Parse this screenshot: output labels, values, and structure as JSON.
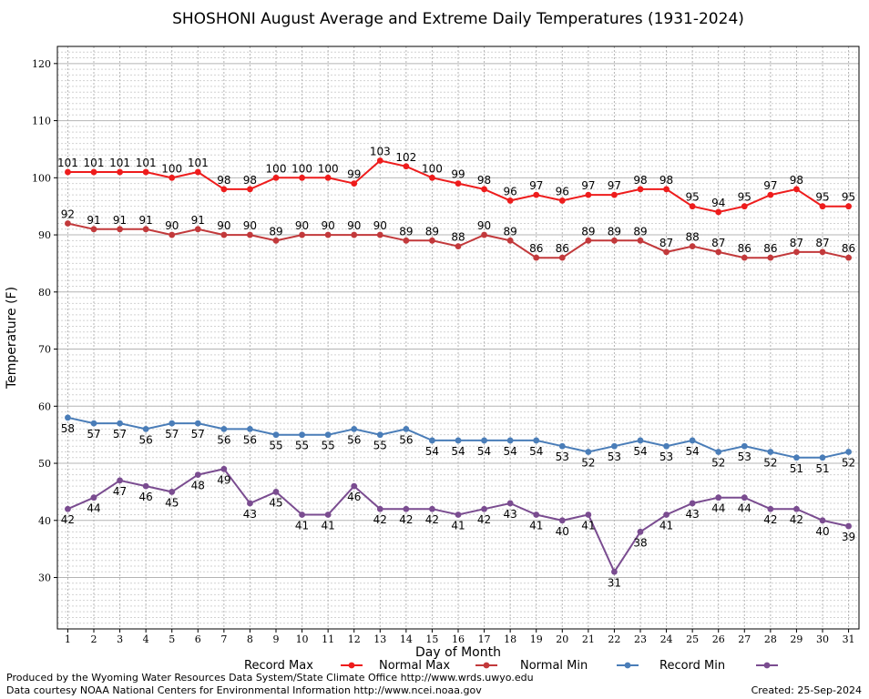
{
  "chart_data": {
    "type": "line",
    "title": "SHOSHONI August Average and Extreme Daily Temperatures (1931-2024)",
    "xlabel": "Day of Month",
    "ylabel": "Temperature (F)",
    "xlim": [
      0.6,
      31.4
    ],
    "ylim": [
      21,
      123
    ],
    "y_ticks": [
      30,
      40,
      50,
      60,
      70,
      80,
      90,
      100,
      110,
      120
    ],
    "x": [
      1,
      2,
      3,
      4,
      5,
      6,
      7,
      8,
      9,
      10,
      11,
      12,
      13,
      14,
      15,
      16,
      17,
      18,
      19,
      20,
      21,
      22,
      23,
      24,
      25,
      26,
      27,
      28,
      29,
      30,
      31
    ],
    "grid": true,
    "legend_position": "bottom",
    "series": [
      {
        "name": "Record Max",
        "color": "#ee1c1c",
        "label_pos": "above",
        "values": [
          101,
          101,
          101,
          101,
          100,
          101,
          98,
          98,
          100,
          100,
          100,
          99,
          103,
          102,
          100,
          99,
          98,
          96,
          97,
          96,
          97,
          97,
          98,
          98,
          95,
          94,
          95,
          97,
          98,
          95,
          95
        ]
      },
      {
        "name": "Normal Max",
        "color": "#c2393b",
        "label_pos": "above",
        "values": [
          92,
          91,
          91,
          91,
          90,
          91,
          90,
          90,
          89,
          90,
          90,
          90,
          90,
          89,
          89,
          88,
          90,
          89,
          86,
          86,
          89,
          89,
          89,
          87,
          88,
          87,
          86,
          86,
          87,
          87,
          86
        ]
      },
      {
        "name": "Normal Min",
        "color": "#4a7db8",
        "label_pos": "below",
        "values": [
          58,
          57,
          57,
          56,
          57,
          57,
          56,
          56,
          55,
          55,
          55,
          56,
          55,
          56,
          54,
          54,
          54,
          54,
          54,
          53,
          52,
          53,
          54,
          53,
          54,
          52,
          53,
          52,
          51,
          51,
          52
        ]
      },
      {
        "name": "Record Min",
        "color": "#7a4c90",
        "label_pos": "below",
        "values": [
          42,
          44,
          47,
          46,
          45,
          48,
          49,
          43,
          45,
          41,
          41,
          46,
          42,
          42,
          42,
          41,
          42,
          43,
          41,
          40,
          41,
          31,
          38,
          41,
          43,
          44,
          44,
          42,
          42,
          40,
          39
        ]
      }
    ]
  },
  "footer": {
    "produced_by": "Produced by the Wyoming Water Resources Data System/State Climate Office http://www.wrds.uwyo.edu",
    "courtesy": "Data courtesy NOAA National Centers for Environmental Information http://www.ncei.noaa.gov",
    "created": "Created:  25-Sep-2024"
  }
}
